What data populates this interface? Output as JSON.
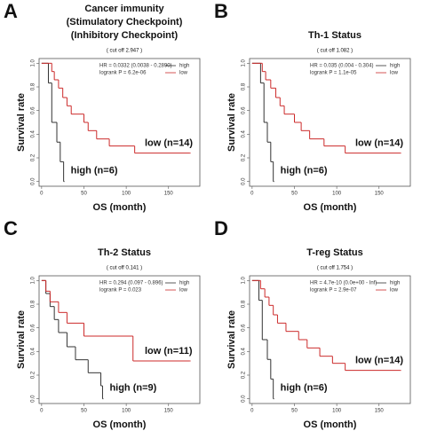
{
  "chart_data": [
    {
      "type": "line",
      "panel_label": "A",
      "title": [
        "Cancer immunity",
        "(Stimulatory Checkpoint)",
        "(Inhibitory Checkpoint)"
      ],
      "subtitle": "( cut off 2.947 )",
      "x_label": "OS (month)",
      "y_label": "Survival rate",
      "step": true,
      "annotations": [
        "HR = 0.0332 (0.0038 - 0.2890)",
        "logrank P = 6.2e-06"
      ],
      "xlim": [
        -3,
        187
      ],
      "ylim": [
        -0.04,
        1.04
      ],
      "xticks": [
        0,
        50,
        100,
        150
      ],
      "yticks": [
        {
          "value": 0,
          "label": "0.0"
        },
        {
          "value": 0.2,
          "label": "0.2"
        },
        {
          "value": 0.4,
          "label": "0.4"
        },
        {
          "value": 0.6,
          "label": "0.6"
        },
        {
          "value": 0.8,
          "label": "0.8"
        },
        {
          "value": 1,
          "label": "1.0"
        }
      ],
      "legend": "top-right",
      "series": [
        {
          "name": "high",
          "color": "#333333",
          "label": "high (n=6)",
          "x": [
            0,
            8,
            12,
            18,
            22,
            26
          ],
          "values": [
            1,
            0.833,
            0.5,
            0.333,
            0.167,
            0
          ]
        },
        {
          "name": "low",
          "color": "#cc2a2a",
          "label": "low (n=14)",
          "x": [
            0,
            12,
            15,
            20,
            25,
            30,
            35,
            50,
            55,
            65,
            80,
            110,
            175
          ],
          "values": [
            1,
            0.93,
            0.86,
            0.79,
            0.71,
            0.64,
            0.57,
            0.5,
            0.43,
            0.36,
            0.3,
            0.24,
            0.24
          ]
        }
      ]
    },
    {
      "type": "line",
      "panel_label": "B",
      "title": [
        "Th-1 Status"
      ],
      "subtitle": "( cut off 1.082 )",
      "x_label": "OS (month)",
      "y_label": "Survival rate",
      "step": true,
      "annotations": [
        "HR = 0.035 (0.004 - 0.304)",
        "logrank P = 1.1e-05"
      ],
      "xlim": [
        -3,
        187
      ],
      "ylim": [
        -0.04,
        1.04
      ],
      "xticks": [
        0,
        50,
        100,
        150
      ],
      "yticks": [
        {
          "value": 0,
          "label": "0.0"
        },
        {
          "value": 0.2,
          "label": "0.2"
        },
        {
          "value": 0.4,
          "label": "0.4"
        },
        {
          "value": 0.6,
          "label": "0.6"
        },
        {
          "value": 0.8,
          "label": "0.8"
        },
        {
          "value": 1,
          "label": "1.0"
        }
      ],
      "legend": "top-right",
      "series": [
        {
          "name": "high",
          "color": "#333333",
          "label": "high (n=6)",
          "x": [
            0,
            10,
            14,
            18,
            22,
            25
          ],
          "values": [
            1,
            0.833,
            0.5,
            0.333,
            0.167,
            0
          ]
        },
        {
          "name": "low",
          "color": "#cc2a2a",
          "label": "low (n=14)",
          "x": [
            0,
            12,
            16,
            22,
            28,
            33,
            38,
            50,
            58,
            68,
            85,
            110,
            175
          ],
          "values": [
            1,
            0.93,
            0.86,
            0.79,
            0.71,
            0.64,
            0.57,
            0.5,
            0.43,
            0.36,
            0.3,
            0.24,
            0.24
          ]
        }
      ]
    },
    {
      "type": "line",
      "panel_label": "C",
      "title": [
        "Th-2 Status"
      ],
      "subtitle": "( cut off 0.141 )",
      "x_label": "OS (month)",
      "y_label": "Survival rate",
      "step": true,
      "annotations": [
        "HR = 0.294 (0.097 - 0.896)",
        "logrank P = 0.023"
      ],
      "xlim": [
        -3,
        187
      ],
      "ylim": [
        -0.04,
        1.04
      ],
      "xticks": [
        0,
        50,
        100,
        150
      ],
      "yticks": [
        {
          "value": 0,
          "label": "0.0"
        },
        {
          "value": 0.2,
          "label": "0.2"
        },
        {
          "value": 0.4,
          "label": "0.4"
        },
        {
          "value": 0.6,
          "label": "0.6"
        },
        {
          "value": 0.8,
          "label": "0.8"
        },
        {
          "value": 1,
          "label": "1.0"
        }
      ],
      "legend": "top-right",
      "series": [
        {
          "name": "high",
          "color": "#333333",
          "label": "high (n=9)",
          "x": [
            0,
            5,
            10,
            15,
            20,
            30,
            40,
            55,
            70,
            72
          ],
          "values": [
            1,
            0.89,
            0.78,
            0.67,
            0.56,
            0.44,
            0.33,
            0.22,
            0.11,
            0
          ]
        },
        {
          "name": "low",
          "color": "#cc2a2a",
          "label": "low (n=11)",
          "x": [
            0,
            5,
            10,
            20,
            30,
            50,
            108,
            175
          ],
          "values": [
            1,
            0.91,
            0.82,
            0.73,
            0.64,
            0.53,
            0.32,
            0.32
          ]
        }
      ]
    },
    {
      "type": "line",
      "panel_label": "D",
      "title": [
        "T-reg Status"
      ],
      "subtitle": "( cut off 1.754 )",
      "x_label": "OS (month)",
      "y_label": "Survival rate",
      "step": true,
      "annotations": [
        "HR = 4.7e-10 (0.0e+00 -    Inf)",
        "logrank P = 2.9e-07"
      ],
      "xlim": [
        -3,
        187
      ],
      "ylim": [
        -0.04,
        1.04
      ],
      "xticks": [
        0,
        50,
        100,
        150
      ],
      "yticks": [
        {
          "value": 0,
          "label": "0.0"
        },
        {
          "value": 0.2,
          "label": "0.2"
        },
        {
          "value": 0.4,
          "label": "0.4"
        },
        {
          "value": 0.6,
          "label": "0.6"
        },
        {
          "value": 0.8,
          "label": "0.8"
        },
        {
          "value": 1,
          "label": "1.0"
        }
      ],
      "legend": "top-right",
      "series": [
        {
          "name": "high",
          "color": "#333333",
          "label": "high (n=6)",
          "x": [
            0,
            8,
            12,
            18,
            22,
            25
          ],
          "values": [
            1,
            0.833,
            0.5,
            0.333,
            0.167,
            0
          ]
        },
        {
          "name": "low",
          "color": "#cc2a2a",
          "label": "low (n=14)",
          "x": [
            0,
            10,
            15,
            20,
            25,
            30,
            40,
            55,
            65,
            80,
            95,
            110,
            175
          ],
          "values": [
            1,
            0.93,
            0.86,
            0.79,
            0.71,
            0.64,
            0.57,
            0.5,
            0.43,
            0.36,
            0.3,
            0.24,
            0.24
          ]
        }
      ]
    }
  ]
}
